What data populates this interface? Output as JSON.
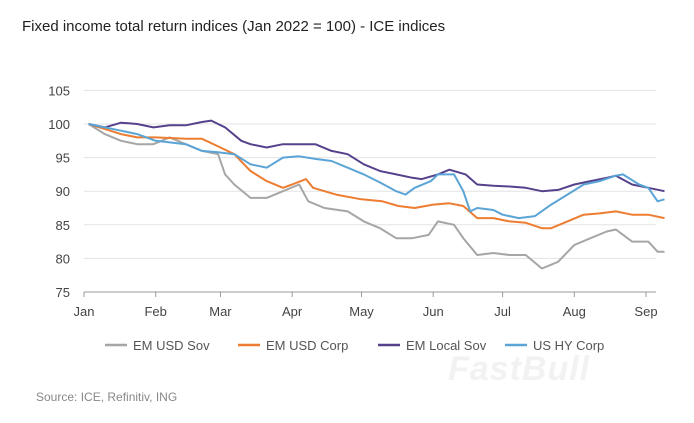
{
  "watermark": "FastBull",
  "chart_data": {
    "type": "line",
    "title": "Fixed income total return indices (Jan 2022 = 100) - ICE indices",
    "source": "Source: ICE, Refinitiv, ING",
    "xlabel": "",
    "ylabel": "",
    "ylim": [
      75,
      105
    ],
    "yticks": [
      105,
      100,
      95,
      90,
      85,
      80,
      75
    ],
    "xticks": [
      {
        "label": "Jan",
        "date": "2022-01-01"
      },
      {
        "label": "Feb",
        "date": "2022-02-01"
      },
      {
        "label": "Mar",
        "date": "2022-03-01"
      },
      {
        "label": "Apr",
        "date": "2022-04-01"
      },
      {
        "label": "May",
        "date": "2022-05-01"
      },
      {
        "label": "Jun",
        "date": "2022-06-01"
      },
      {
        "label": "Jul",
        "date": "2022-07-01"
      },
      {
        "label": "Aug",
        "date": "2022-08-01"
      },
      {
        "label": "Sep",
        "date": "2022-09-01"
      }
    ],
    "grid": "horizontal",
    "legend": "bottom",
    "series": [
      {
        "name": "EM USD Sov",
        "color": "#a6a6a6",
        "points": [
          [
            "2022-01-03",
            100
          ],
          [
            "2022-01-10",
            98.5
          ],
          [
            "2022-01-17",
            97.5
          ],
          [
            "2022-01-24",
            97
          ],
          [
            "2022-01-31",
            97
          ],
          [
            "2022-02-07",
            98
          ],
          [
            "2022-02-14",
            97
          ],
          [
            "2022-02-21",
            96
          ],
          [
            "2022-02-28",
            95.5
          ],
          [
            "2022-03-03",
            92.5
          ],
          [
            "2022-03-07",
            91
          ],
          [
            "2022-03-14",
            89
          ],
          [
            "2022-03-21",
            89
          ],
          [
            "2022-03-28",
            90
          ],
          [
            "2022-04-04",
            91
          ],
          [
            "2022-04-08",
            88.5
          ],
          [
            "2022-04-15",
            87.5
          ],
          [
            "2022-04-25",
            87
          ],
          [
            "2022-05-02",
            85.5
          ],
          [
            "2022-05-09",
            84.5
          ],
          [
            "2022-05-16",
            83
          ],
          [
            "2022-05-23",
            83
          ],
          [
            "2022-05-30",
            83.5
          ],
          [
            "2022-06-03",
            85.5
          ],
          [
            "2022-06-10",
            85
          ],
          [
            "2022-06-14",
            83
          ],
          [
            "2022-06-20",
            80.5
          ],
          [
            "2022-06-27",
            80.8
          ],
          [
            "2022-07-04",
            80.5
          ],
          [
            "2022-07-11",
            80.5
          ],
          [
            "2022-07-18",
            78.5
          ],
          [
            "2022-07-25",
            79.5
          ],
          [
            "2022-08-01",
            82
          ],
          [
            "2022-08-08",
            83
          ],
          [
            "2022-08-15",
            84
          ],
          [
            "2022-08-19",
            84.3
          ],
          [
            "2022-08-26",
            82.5
          ],
          [
            "2022-09-02",
            82.5
          ],
          [
            "2022-09-06",
            81
          ],
          [
            "2022-09-09",
            81
          ]
        ]
      },
      {
        "name": "EM USD Corp",
        "color": "#ed7d31",
        "points": [
          [
            "2022-01-03",
            100
          ],
          [
            "2022-01-17",
            98.5
          ],
          [
            "2022-01-24",
            98
          ],
          [
            "2022-02-01",
            98
          ],
          [
            "2022-02-14",
            97.8
          ],
          [
            "2022-02-21",
            97.8
          ],
          [
            "2022-03-01",
            96.5
          ],
          [
            "2022-03-07",
            95.5
          ],
          [
            "2022-03-14",
            93
          ],
          [
            "2022-03-21",
            91.5
          ],
          [
            "2022-03-28",
            90.5
          ],
          [
            "2022-04-01",
            91
          ],
          [
            "2022-04-07",
            91.8
          ],
          [
            "2022-04-10",
            90.5
          ],
          [
            "2022-04-20",
            89.5
          ],
          [
            "2022-05-01",
            88.8
          ],
          [
            "2022-05-10",
            88.5
          ],
          [
            "2022-05-17",
            87.8
          ],
          [
            "2022-05-24",
            87.5
          ],
          [
            "2022-06-01",
            88
          ],
          [
            "2022-06-08",
            88.2
          ],
          [
            "2022-06-14",
            87.8
          ],
          [
            "2022-06-20",
            86
          ],
          [
            "2022-06-27",
            86
          ],
          [
            "2022-07-04",
            85.5
          ],
          [
            "2022-07-11",
            85.3
          ],
          [
            "2022-07-18",
            84.5
          ],
          [
            "2022-07-22",
            84.5
          ],
          [
            "2022-07-29",
            85.5
          ],
          [
            "2022-08-05",
            86.5
          ],
          [
            "2022-08-12",
            86.7
          ],
          [
            "2022-08-19",
            87
          ],
          [
            "2022-08-26",
            86.5
          ],
          [
            "2022-09-02",
            86.5
          ],
          [
            "2022-09-09",
            86
          ]
        ]
      },
      {
        "name": "EM Local Sov",
        "color": "#56428c",
        "points": [
          [
            "2022-01-03",
            100
          ],
          [
            "2022-01-10",
            99.5
          ],
          [
            "2022-01-17",
            100.2
          ],
          [
            "2022-01-24",
            100
          ],
          [
            "2022-01-31",
            99.5
          ],
          [
            "2022-02-07",
            99.8
          ],
          [
            "2022-02-14",
            99.8
          ],
          [
            "2022-02-21",
            100.3
          ],
          [
            "2022-02-25",
            100.5
          ],
          [
            "2022-03-03",
            99.5
          ],
          [
            "2022-03-10",
            97.5
          ],
          [
            "2022-03-14",
            97
          ],
          [
            "2022-03-21",
            96.5
          ],
          [
            "2022-03-28",
            97
          ],
          [
            "2022-04-04",
            97
          ],
          [
            "2022-04-11",
            97
          ],
          [
            "2022-04-18",
            96
          ],
          [
            "2022-04-25",
            95.5
          ],
          [
            "2022-05-02",
            94
          ],
          [
            "2022-05-09",
            93
          ],
          [
            "2022-05-16",
            92.5
          ],
          [
            "2022-05-23",
            92
          ],
          [
            "2022-05-27",
            91.8
          ],
          [
            "2022-06-03",
            92.5
          ],
          [
            "2022-06-08",
            93.2
          ],
          [
            "2022-06-15",
            92.5
          ],
          [
            "2022-06-20",
            91
          ],
          [
            "2022-06-27",
            90.8
          ],
          [
            "2022-07-04",
            90.7
          ],
          [
            "2022-07-11",
            90.5
          ],
          [
            "2022-07-18",
            90
          ],
          [
            "2022-07-25",
            90.2
          ],
          [
            "2022-08-01",
            91
          ],
          [
            "2022-08-08",
            91.5
          ],
          [
            "2022-08-15",
            92
          ],
          [
            "2022-08-19",
            92.3
          ],
          [
            "2022-08-26",
            91
          ],
          [
            "2022-09-02",
            90.5
          ],
          [
            "2022-09-09",
            90
          ]
        ]
      },
      {
        "name": "US HY Corp",
        "color": "#5ba4d6",
        "points": [
          [
            "2022-01-03",
            100
          ],
          [
            "2022-01-10",
            99.5
          ],
          [
            "2022-01-17",
            99
          ],
          [
            "2022-01-24",
            98.5
          ],
          [
            "2022-02-01",
            97.5
          ],
          [
            "2022-02-14",
            97
          ],
          [
            "2022-02-21",
            96
          ],
          [
            "2022-02-28",
            95.8
          ],
          [
            "2022-03-07",
            95.5
          ],
          [
            "2022-03-14",
            94
          ],
          [
            "2022-03-21",
            93.5
          ],
          [
            "2022-03-28",
            95
          ],
          [
            "2022-04-04",
            95.2
          ],
          [
            "2022-04-11",
            94.8
          ],
          [
            "2022-04-18",
            94.5
          ],
          [
            "2022-04-25",
            93.5
          ],
          [
            "2022-05-02",
            92.5
          ],
          [
            "2022-05-09",
            91.3
          ],
          [
            "2022-05-16",
            90
          ],
          [
            "2022-05-20",
            89.5
          ],
          [
            "2022-05-24",
            90.5
          ],
          [
            "2022-05-31",
            91.5
          ],
          [
            "2022-06-03",
            92.5
          ],
          [
            "2022-06-10",
            92.5
          ],
          [
            "2022-06-14",
            90
          ],
          [
            "2022-06-17",
            87
          ],
          [
            "2022-06-20",
            87.5
          ],
          [
            "2022-06-27",
            87.2
          ],
          [
            "2022-07-01",
            86.5
          ],
          [
            "2022-07-08",
            86
          ],
          [
            "2022-07-15",
            86.3
          ],
          [
            "2022-07-22",
            88
          ],
          [
            "2022-07-29",
            89.5
          ],
          [
            "2022-08-05",
            91
          ],
          [
            "2022-08-12",
            91.5
          ],
          [
            "2022-08-19",
            92.3
          ],
          [
            "2022-08-22",
            92.5
          ],
          [
            "2022-08-29",
            91
          ],
          [
            "2022-09-02",
            90.5
          ],
          [
            "2022-09-06",
            88.5
          ],
          [
            "2022-09-09",
            88.8
          ]
        ]
      }
    ]
  }
}
